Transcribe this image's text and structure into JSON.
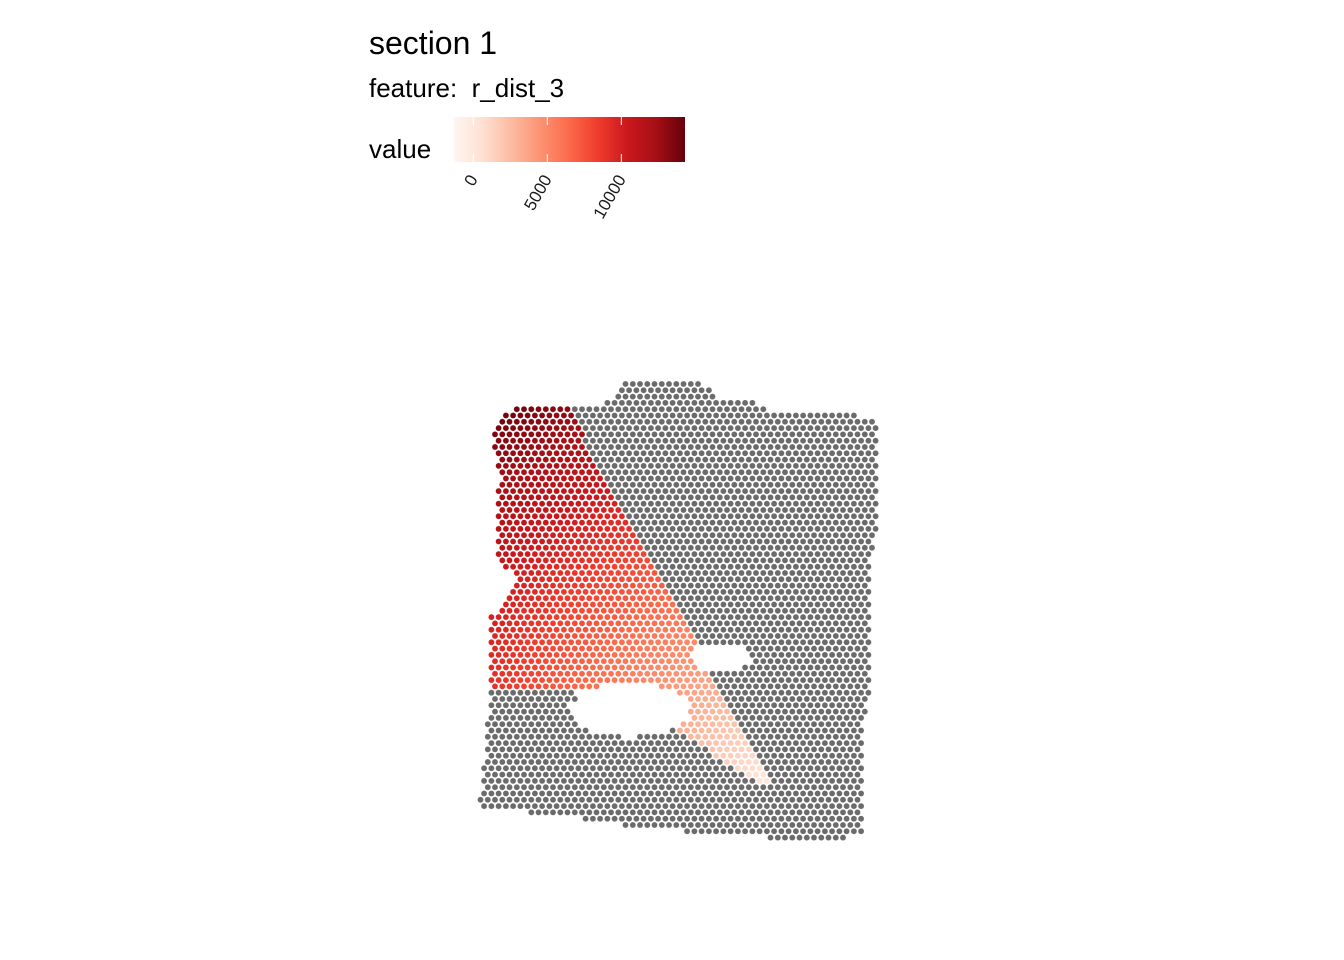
{
  "chart_data": {
    "type": "scatter",
    "title": "section 1",
    "subtitle_label": "feature:",
    "subtitle_value": "r_dist_3",
    "legend": {
      "title": "value",
      "placement": "top",
      "ticks": [
        0,
        5000,
        10000
      ],
      "tick_labels": [
        "0",
        "5000",
        "10000"
      ],
      "range": [
        -1300,
        14300
      ],
      "colors": [
        "#fff5f0",
        "#fee0d2",
        "#fcbba1",
        "#fc9272",
        "#fb6a4a",
        "#ef3b2c",
        "#cb181d",
        "#a50f15",
        "#67000d"
      ]
    },
    "colors": {
      "na_spot": "#6b6b6b",
      "background": "#ffffff"
    },
    "grid": false,
    "axes_visible": false,
    "description": "Hexagonal grid of tissue spots; spots in a wedge region colored by r_dist_3 value (0 near the wedge tip, ~14000 at the top-left), remaining spots grey (no value)."
  }
}
